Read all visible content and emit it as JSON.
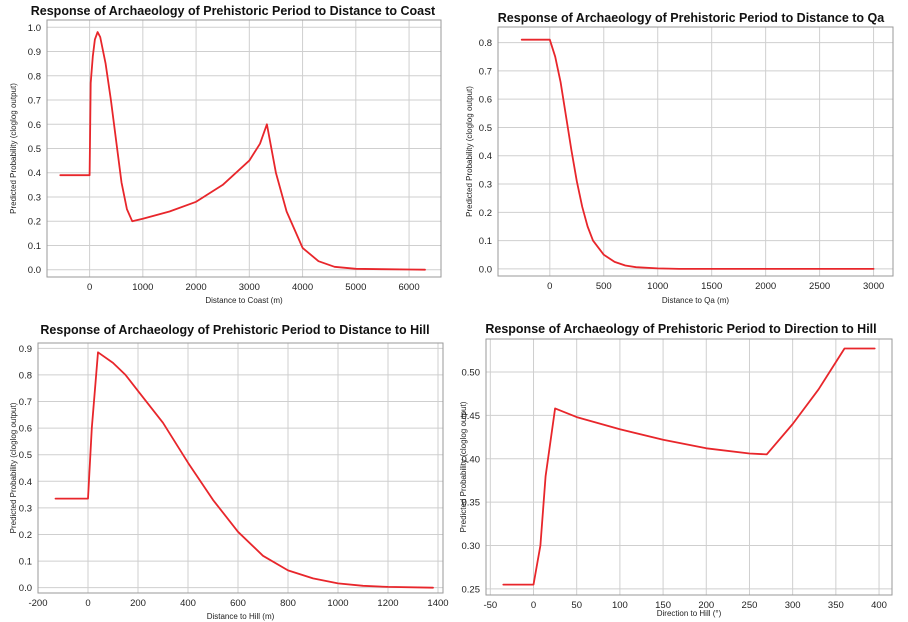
{
  "colors": {
    "series": "#e8262b",
    "grid": "#cfcfcf",
    "frame": "#9a9a9a"
  },
  "chart_data": [
    {
      "type": "line",
      "title": "Response of Archaeology of Prehistoric Period to Distance to Coast",
      "xlabel": "Distance to Coast (m)",
      "ylabel": "Predicted Probability (cloglog output)",
      "xlim": [
        -800,
        6600
      ],
      "ylim": [
        -0.03,
        1.03
      ],
      "xticks": [
        0,
        1000,
        2000,
        3000,
        4000,
        5000,
        6000
      ],
      "yticks": [
        0.0,
        0.1,
        0.2,
        0.3,
        0.4,
        0.5,
        0.6,
        0.7,
        0.8,
        0.9,
        1.0
      ],
      "grid": true,
      "series": [
        {
          "x": [
            -550,
            0,
            20,
            60,
            100,
            150,
            200,
            300,
            400,
            500,
            600,
            700,
            800,
            1000,
            1500,
            2000,
            2500,
            3000,
            3200,
            3330,
            3500,
            3700,
            4000,
            4300,
            4600,
            5000,
            5500,
            6000,
            6300
          ],
          "y": [
            0.39,
            0.39,
            0.77,
            0.88,
            0.95,
            0.98,
            0.96,
            0.85,
            0.7,
            0.53,
            0.36,
            0.25,
            0.2,
            0.21,
            0.24,
            0.28,
            0.35,
            0.45,
            0.52,
            0.6,
            0.4,
            0.24,
            0.09,
            0.035,
            0.012,
            0.004,
            0.002,
            0.001,
            0.0
          ]
        }
      ]
    },
    {
      "type": "line",
      "title": "Response of Archaeology of Prehistoric Period to Distance to Qa",
      "xlabel": "Distance to Qa (m)",
      "ylabel": "Predicted Probability (cloglog output)",
      "xlim": [
        -480,
        3180
      ],
      "ylim": [
        -0.025,
        0.855
      ],
      "xticks": [
        0,
        500,
        1000,
        1500,
        2000,
        2500,
        3000
      ],
      "yticks": [
        0.0,
        0.1,
        0.2,
        0.3,
        0.4,
        0.5,
        0.6,
        0.7,
        0.8
      ],
      "grid": true,
      "series": [
        {
          "x": [
            -260,
            0,
            50,
            100,
            150,
            200,
            250,
            300,
            350,
            400,
            450,
            500,
            600,
            700,
            800,
            1000,
            1200,
            2000,
            3000
          ],
          "y": [
            0.81,
            0.81,
            0.75,
            0.66,
            0.54,
            0.42,
            0.31,
            0.22,
            0.15,
            0.1,
            0.075,
            0.05,
            0.025,
            0.012,
            0.006,
            0.002,
            0.0,
            0.0,
            0.0
          ]
        }
      ]
    },
    {
      "type": "line",
      "title": "Response of Archaeology of Prehistoric Period to Distance to Hill",
      "xlabel": "Distance to Hill (m)",
      "ylabel": "Predicted Probability (cloglog output)",
      "xlim": [
        -200,
        1420
      ],
      "ylim": [
        -0.02,
        0.92
      ],
      "xticks": [
        -200,
        0,
        200,
        400,
        600,
        800,
        1000,
        1200,
        1400
      ],
      "yticks": [
        0.0,
        0.1,
        0.2,
        0.3,
        0.4,
        0.5,
        0.6,
        0.7,
        0.8,
        0.9
      ],
      "grid": true,
      "series": [
        {
          "x": [
            -130,
            0,
            15,
            40,
            100,
            150,
            200,
            300,
            400,
            500,
            600,
            700,
            800,
            900,
            1000,
            1100,
            1200,
            1380
          ],
          "y": [
            0.335,
            0.335,
            0.6,
            0.885,
            0.845,
            0.8,
            0.74,
            0.62,
            0.47,
            0.33,
            0.21,
            0.12,
            0.065,
            0.035,
            0.016,
            0.007,
            0.003,
            0.0
          ]
        }
      ]
    },
    {
      "type": "line",
      "title": "Response of Archaeology of Prehistoric Period to Direction to Hill",
      "xlabel": "Direction to Hill (°)",
      "ylabel": "Predicted Probability (cloglog output)",
      "xlim": [
        -55,
        415
      ],
      "ylim": [
        0.243,
        0.538
      ],
      "xticks": [
        -50,
        0,
        50,
        100,
        150,
        200,
        250,
        300,
        350,
        400
      ],
      "yticks": [
        0.25,
        0.3,
        0.35,
        0.4,
        0.45,
        0.5
      ],
      "grid": true,
      "series": [
        {
          "x": [
            -35,
            0,
            8,
            14,
            25,
            50,
            100,
            150,
            200,
            250,
            270,
            300,
            330,
            360,
            395
          ],
          "y": [
            0.255,
            0.255,
            0.3,
            0.38,
            0.458,
            0.448,
            0.434,
            0.422,
            0.412,
            0.406,
            0.405,
            0.44,
            0.48,
            0.527,
            0.527
          ]
        }
      ]
    }
  ]
}
